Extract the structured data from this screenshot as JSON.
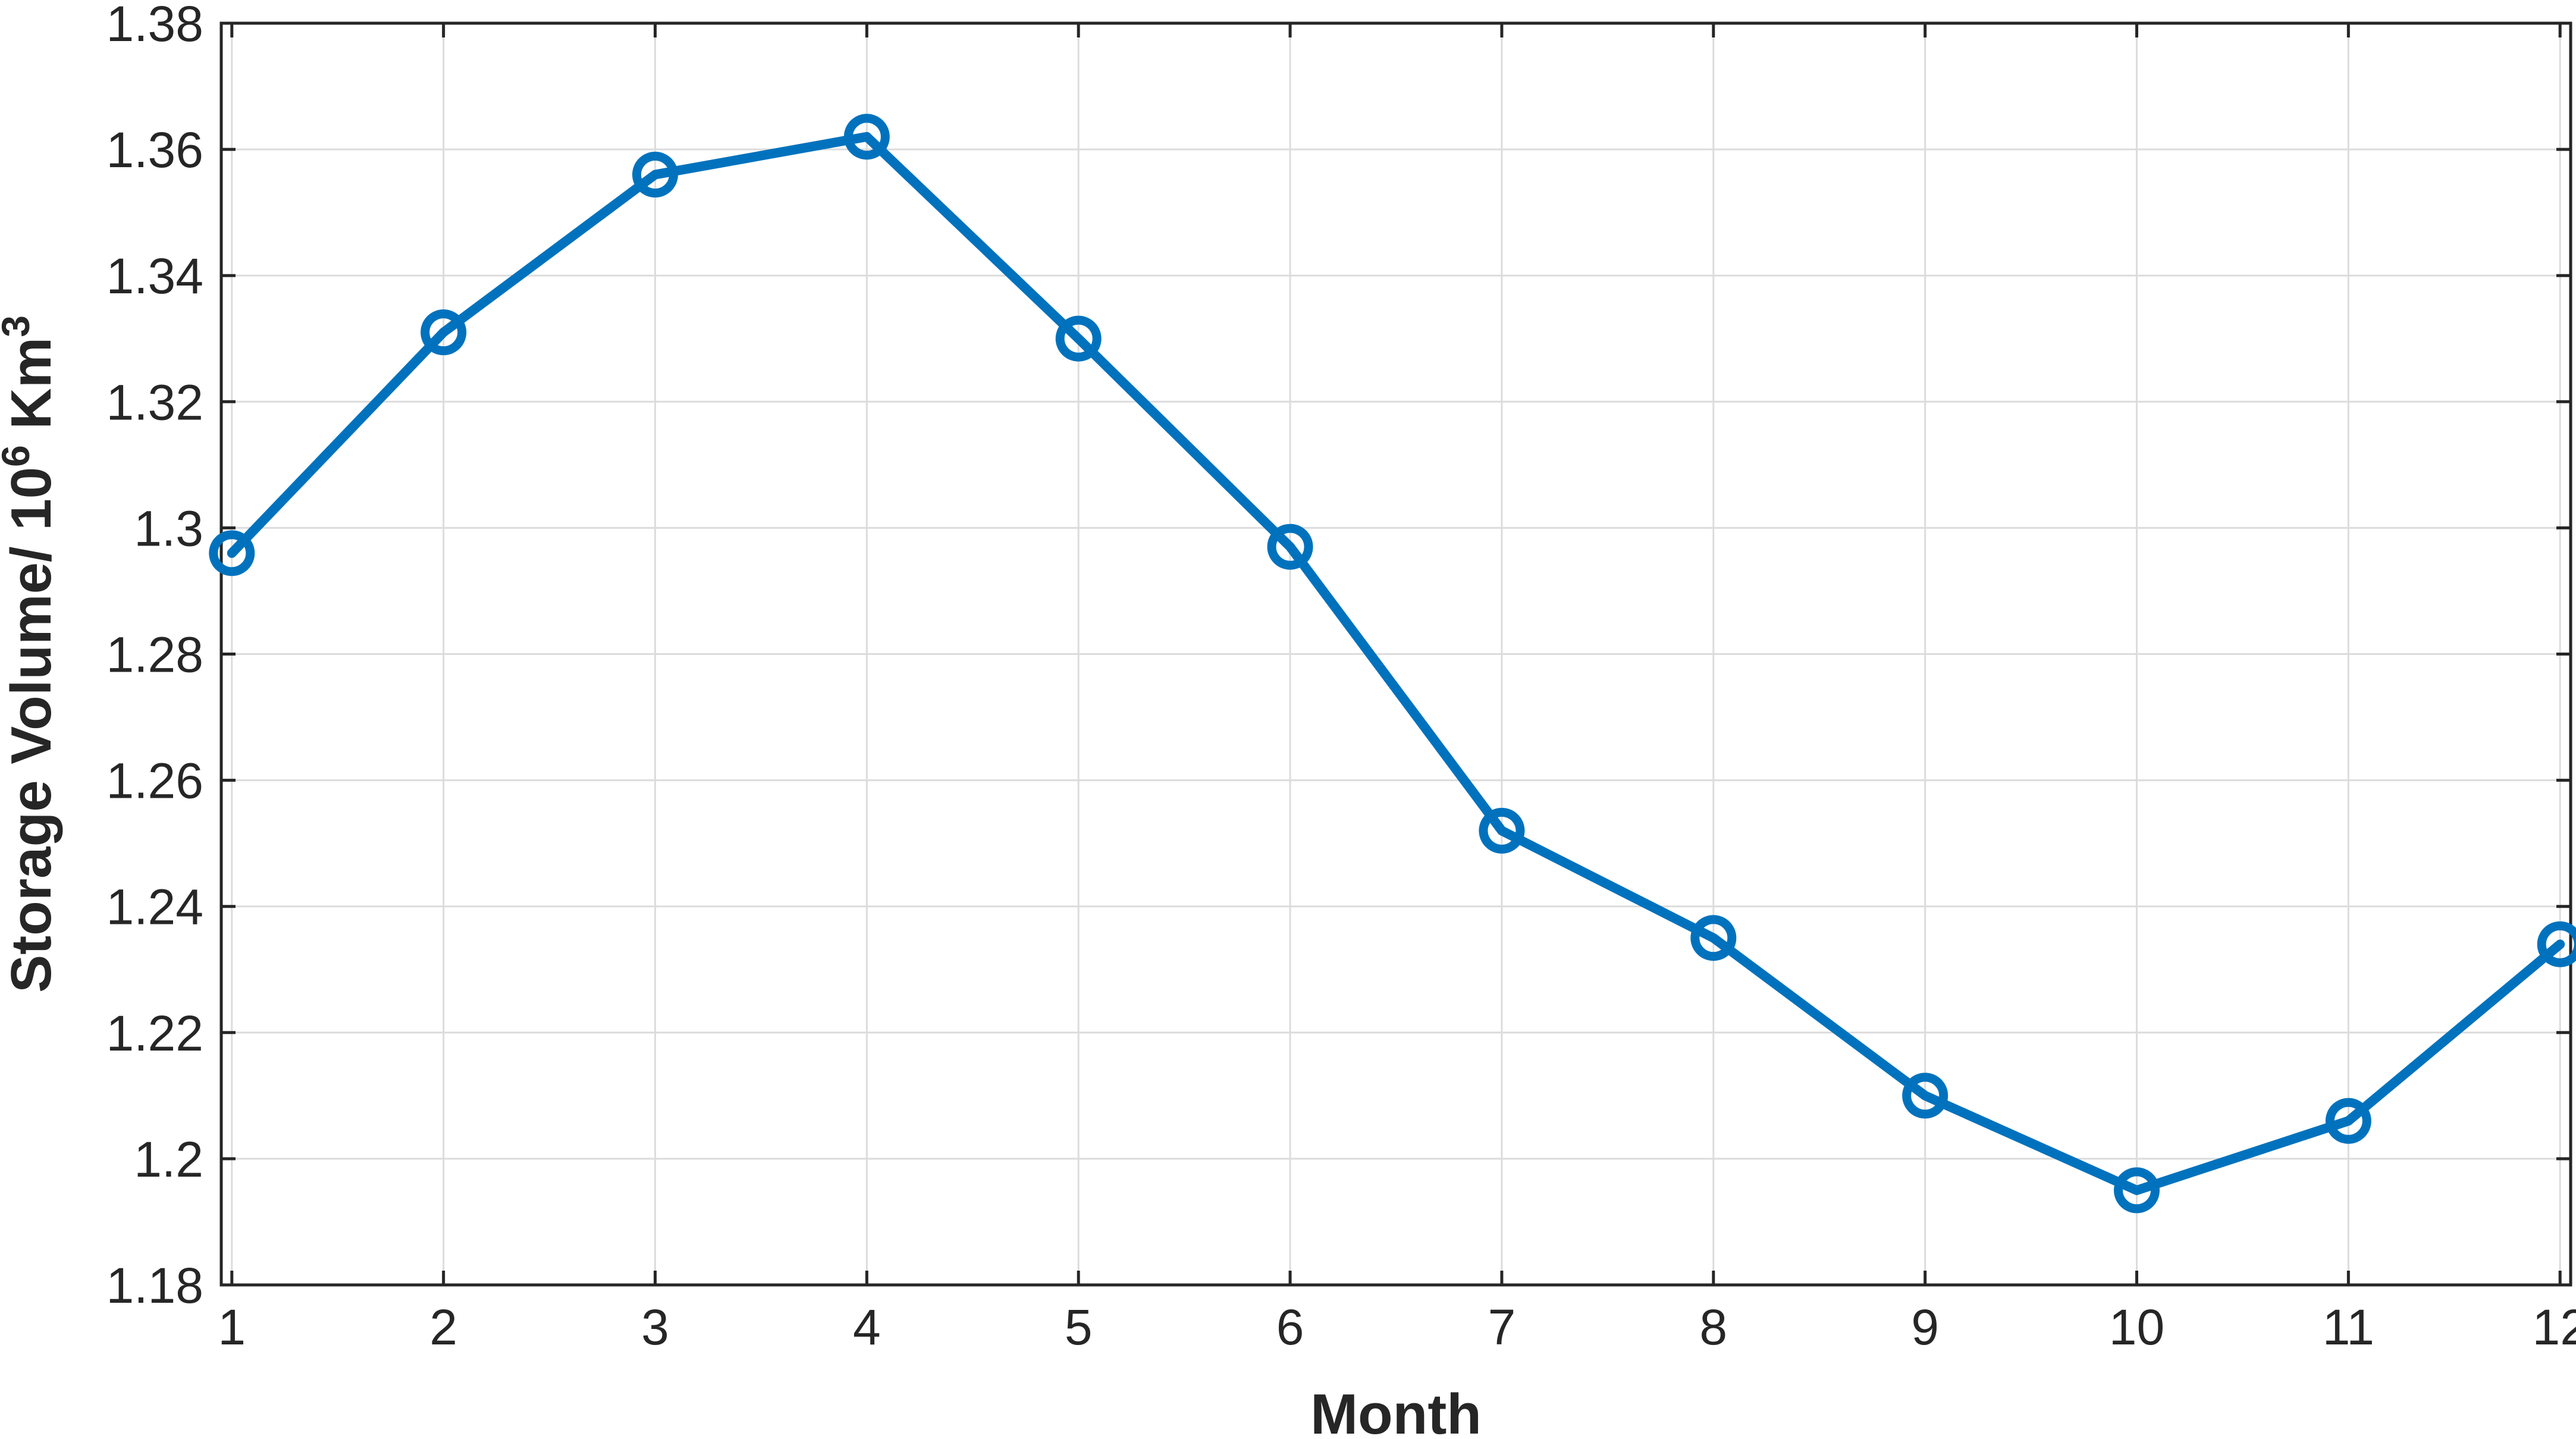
{
  "chart_data": {
    "type": "line",
    "xlabel": "Month",
    "ylabel": "Storage Volume/ 10",
    "ylabel_sup": "6",
    "ylabel_unit": " Km",
    "ylabel_unit_sup": "3",
    "x": [
      1,
      2,
      3,
      4,
      5,
      6,
      7,
      8,
      9,
      10,
      11,
      12
    ],
    "xticks": [
      "1",
      "2",
      "3",
      "4",
      "5",
      "6",
      "7",
      "8",
      "9",
      "10",
      "11",
      "12"
    ],
    "yticks": [
      "1.18",
      "1.2",
      "1.22",
      "1.24",
      "1.26",
      "1.28",
      "1.3",
      "1.32",
      "1.34",
      "1.36",
      "1.38"
    ],
    "ytick_values": [
      1.18,
      1.2,
      1.22,
      1.24,
      1.26,
      1.28,
      1.3,
      1.32,
      1.34,
      1.36,
      1.38
    ],
    "xlim": [
      0.95,
      12.05
    ],
    "ylim": [
      1.18,
      1.38
    ],
    "grid": true,
    "marker": "circle",
    "color": "#0072BD",
    "series": [
      {
        "values": [
          1.296,
          1.331,
          1.356,
          1.362,
          1.33,
          1.297,
          1.252,
          1.235,
          1.21,
          1.195,
          1.206,
          1.234
        ]
      }
    ]
  }
}
